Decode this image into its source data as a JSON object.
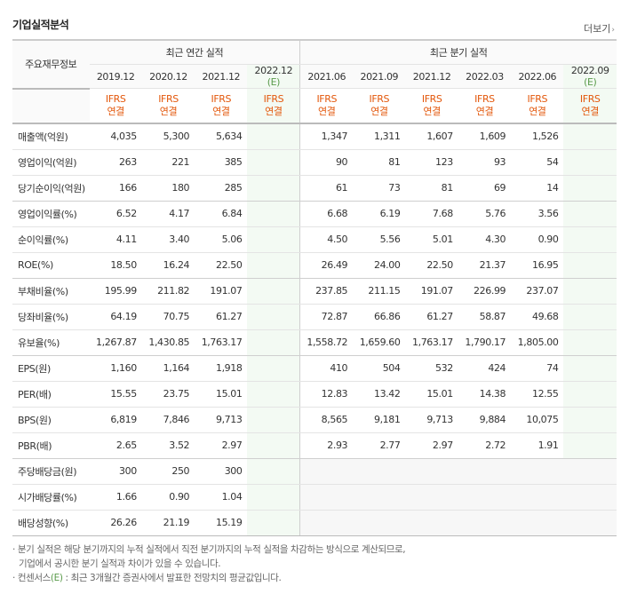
{
  "title": "기업실적분석",
  "more_label": "더보기",
  "header": {
    "row_head": "주요재무정보",
    "annual_group": "최근 연간 실적",
    "quarter_group": "최근 분기 실적",
    "annual_periods": [
      "2019.12",
      "2020.12",
      "2021.12",
      "2022.12"
    ],
    "annual_est_mark": "(E)",
    "quarter_periods": [
      "2021.06",
      "2021.09",
      "2021.12",
      "2022.03",
      "2022.06",
      "2022.09"
    ],
    "quarter_est_mark": "(E)",
    "ifrs_line1": "IFRS",
    "ifrs_line2": "연결"
  },
  "rows": [
    {
      "label": "매출액(억원)",
      "annual": [
        "4,035",
        "5,300",
        "5,634",
        ""
      ],
      "quarter": [
        "1,347",
        "1,311",
        "1,607",
        "1,609",
        "1,526",
        ""
      ]
    },
    {
      "label": "영업이익(억원)",
      "annual": [
        "263",
        "221",
        "385",
        ""
      ],
      "quarter": [
        "90",
        "81",
        "123",
        "93",
        "54",
        ""
      ]
    },
    {
      "label": "당기순이익(억원)",
      "annual": [
        "166",
        "180",
        "285",
        ""
      ],
      "quarter": [
        "61",
        "73",
        "81",
        "69",
        "14",
        ""
      ]
    },
    {
      "label": "영업이익률(%)",
      "annual": [
        "6.52",
        "4.17",
        "6.84",
        ""
      ],
      "quarter": [
        "6.68",
        "6.19",
        "7.68",
        "5.76",
        "3.56",
        ""
      ]
    },
    {
      "label": "순이익률(%)",
      "annual": [
        "4.11",
        "3.40",
        "5.06",
        ""
      ],
      "quarter": [
        "4.50",
        "5.56",
        "5.01",
        "4.30",
        "0.90",
        ""
      ]
    },
    {
      "label": "ROE(%)",
      "annual": [
        "18.50",
        "16.24",
        "22.50",
        ""
      ],
      "quarter": [
        "26.49",
        "24.00",
        "22.50",
        "21.37",
        "16.95",
        ""
      ]
    },
    {
      "label": "부채비율(%)",
      "annual": [
        "195.99",
        "211.82",
        "191.07",
        ""
      ],
      "quarter": [
        "237.85",
        "211.15",
        "191.07",
        "226.99",
        "237.07",
        ""
      ]
    },
    {
      "label": "당좌비율(%)",
      "annual": [
        "64.19",
        "70.75",
        "61.27",
        ""
      ],
      "quarter": [
        "72.87",
        "66.86",
        "61.27",
        "58.87",
        "49.68",
        ""
      ]
    },
    {
      "label": "유보율(%)",
      "annual": [
        "1,267.87",
        "1,430.85",
        "1,763.17",
        ""
      ],
      "quarter": [
        "1,558.72",
        "1,659.60",
        "1,763.17",
        "1,790.17",
        "1,805.00",
        ""
      ]
    },
    {
      "label": "EPS(원)",
      "annual": [
        "1,160",
        "1,164",
        "1,918",
        ""
      ],
      "quarter": [
        "410",
        "504",
        "532",
        "424",
        "74",
        ""
      ]
    },
    {
      "label": "PER(배)",
      "annual": [
        "15.55",
        "23.75",
        "15.01",
        ""
      ],
      "quarter": [
        "12.83",
        "13.42",
        "15.01",
        "14.38",
        "12.55",
        ""
      ]
    },
    {
      "label": "BPS(원)",
      "annual": [
        "6,819",
        "7,846",
        "9,713",
        ""
      ],
      "quarter": [
        "8,565",
        "9,181",
        "9,713",
        "9,884",
        "10,075",
        ""
      ]
    },
    {
      "label": "PBR(배)",
      "annual": [
        "2.65",
        "3.52",
        "2.97",
        ""
      ],
      "quarter": [
        "2.93",
        "2.77",
        "2.97",
        "2.72",
        "1.91",
        ""
      ]
    },
    {
      "label": "주당배당금(원)",
      "annual": [
        "300",
        "250",
        "300",
        ""
      ],
      "quarter": [
        "",
        "",
        "",
        "",
        "",
        ""
      ]
    },
    {
      "label": "시가배당률(%)",
      "annual": [
        "1.66",
        "0.90",
        "1.04",
        ""
      ],
      "quarter": [
        "",
        "",
        "",
        "",
        "",
        ""
      ]
    },
    {
      "label": "배당성향(%)",
      "annual": [
        "26.26",
        "21.19",
        "15.19",
        ""
      ],
      "quarter": [
        "",
        "",
        "",
        "",
        "",
        ""
      ]
    }
  ],
  "notes": {
    "line1": "· 분기 실적은 해당 분기까지의 누적 실적에서 직전 분기까지의 누적 실적을 차감하는 방식으로 계산되므로,",
    "line2": "기업에서 공시한 분기 실적과 차이가 있을 수 있습니다.",
    "line3_a": "· 컨센서스",
    "line3_e": "(E)",
    "line3_b": ": 최근 3개월간 증권사에서 발표한 전망치의 평균값입니다."
  },
  "colors": {
    "ifrs": "#e3570b",
    "estimate": "#5a9b4b",
    "estimate_bg": "#f3faf3"
  }
}
